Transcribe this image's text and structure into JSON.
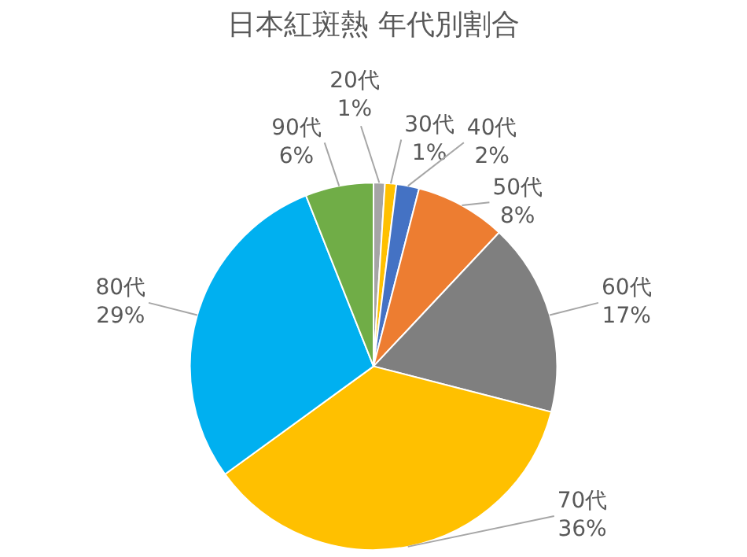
{
  "chart_data": {
    "type": "pie",
    "title": "日本紅斑熱 年代別割合",
    "categories": [
      "20代",
      "30代",
      "40代",
      "50代",
      "60代",
      "70代",
      "80代",
      "90代"
    ],
    "values": [
      1,
      1,
      2,
      8,
      17,
      36,
      29,
      6
    ],
    "value_labels": [
      "1%",
      "1%",
      "2%",
      "8%",
      "17%",
      "36%",
      "29%",
      "6%"
    ],
    "colors": [
      "#a5a5a5",
      "#ffc000",
      "#4472c4",
      "#ed7d31",
      "#7f7f7f",
      "#ffc000",
      "#00b0f0",
      "#70ad47"
    ],
    "legend": false
  }
}
